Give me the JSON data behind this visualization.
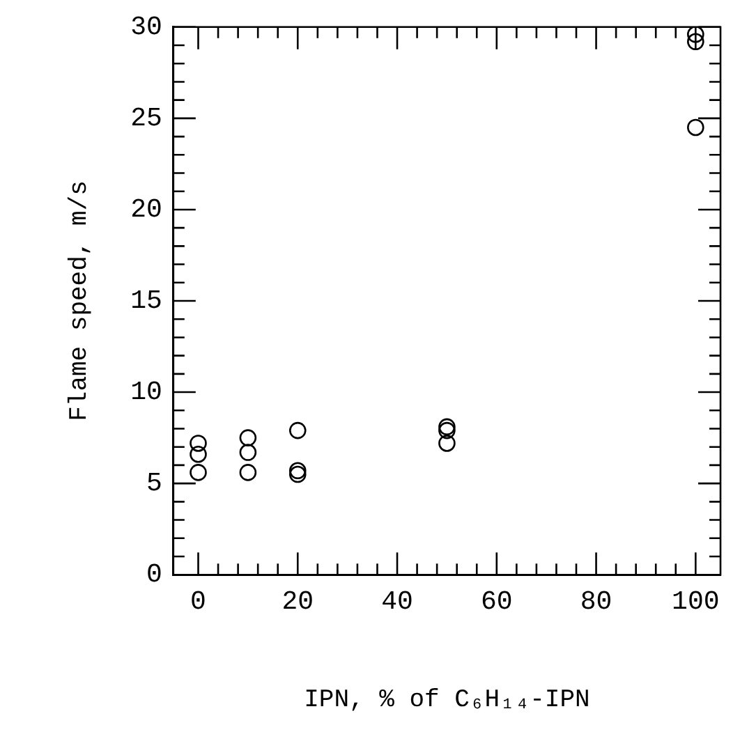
{
  "chart_data": {
    "type": "scatter",
    "xlabel": "IPN, % of C₆H₁₄-IPN",
    "ylabel": "Flame speed, m/s",
    "series": [
      {
        "color": "#000000",
        "x": [
          0,
          0,
          0,
          10,
          10,
          10,
          20,
          20,
          20,
          50,
          50,
          50,
          100,
          100,
          100
        ],
        "values": [
          7.2,
          6.6,
          5.6,
          7.5,
          6.7,
          5.6,
          7.9,
          5.7,
          5.5,
          8.1,
          7.9,
          7.2,
          29.6,
          29.2,
          24.5
        ]
      }
    ],
    "xlim": [
      -5,
      105
    ],
    "xticks": [
      0,
      {
        "value": 4,
        "label": null
      },
      {
        "value": 8,
        "label": null
      },
      {
        "value": 12,
        "label": null
      },
      {
        "value": 16,
        "label": null
      },
      20,
      {
        "value": 24,
        "label": null
      },
      {
        "value": 28,
        "label": null
      },
      {
        "value": 32,
        "label": null
      },
      {
        "value": 36,
        "label": null
      },
      40,
      {
        "value": 44,
        "label": null
      },
      {
        "value": 48,
        "label": null
      },
      {
        "value": 52,
        "label": null
      },
      {
        "value": 56,
        "label": null
      },
      60,
      {
        "value": 64,
        "label": null
      },
      {
        "value": 68,
        "label": null
      },
      {
        "value": 72,
        "label": null
      },
      {
        "value": 76,
        "label": null
      },
      80,
      {
        "value": 84,
        "label": null
      },
      {
        "value": 88,
        "label": null
      },
      {
        "value": 92,
        "label": null
      },
      {
        "value": 96,
        "label": null
      },
      100
    ],
    "ylim": [
      0,
      30
    ],
    "yticks": [
      0,
      {
        "value": 1,
        "label": null
      },
      {
        "value": 2,
        "label": null
      },
      {
        "value": 3,
        "label": null
      },
      {
        "value": 4,
        "label": null
      },
      5,
      {
        "value": 6,
        "label": null
      },
      {
        "value": 7,
        "label": null
      },
      {
        "value": 8,
        "label": null
      },
      {
        "value": 9,
        "label": null
      },
      10,
      {
        "value": 11,
        "label": null
      },
      {
        "value": 12,
        "label": null
      },
      {
        "value": 13,
        "label": null
      },
      {
        "value": 14,
        "label": null
      },
      15,
      {
        "value": 16,
        "label": null
      },
      {
        "value": 17,
        "label": null
      },
      {
        "value": 18,
        "label": null
      },
      {
        "value": 19,
        "label": null
      },
      20,
      {
        "value": 21,
        "label": null
      },
      {
        "value": 22,
        "label": null
      },
      {
        "value": 23,
        "label": null
      },
      {
        "value": 24,
        "label": null
      },
      25,
      {
        "value": 26,
        "label": null
      },
      {
        "value": 27,
        "label": null
      },
      {
        "value": 28,
        "label": null
      },
      {
        "value": 29,
        "label": null
      },
      30
    ],
    "grid": false,
    "legend": false,
    "marker": "circle"
  }
}
